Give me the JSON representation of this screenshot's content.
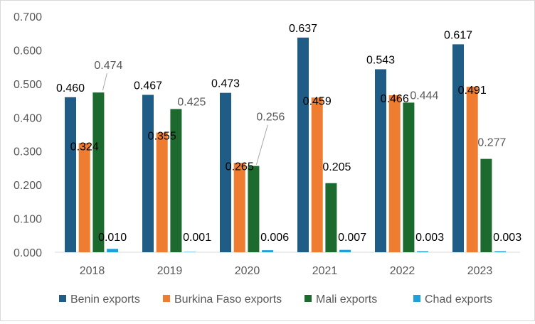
{
  "chart_data": {
    "type": "bar",
    "title": "",
    "xlabel": "",
    "ylabel": "",
    "categories": [
      "2018",
      "2019",
      "2020",
      "2021",
      "2022",
      "2023"
    ],
    "ylim": [
      0,
      0.7
    ],
    "yticks": [
      "0.000",
      "0.100",
      "0.200",
      "0.300",
      "0.400",
      "0.500",
      "0.600",
      "0.700"
    ],
    "grid": false,
    "legend_position": "bottom",
    "series": [
      {
        "name": "Benin exports",
        "color": "#1f5c86",
        "values": [
          0.46,
          0.467,
          0.473,
          0.637,
          0.543,
          0.617
        ],
        "labels": [
          "0.460",
          "0.467",
          "0.473",
          "0.637",
          "0.543",
          "0.617"
        ]
      },
      {
        "name": "Burkina Faso exports",
        "color": "#ee7d31",
        "values": [
          0.324,
          0.355,
          0.265,
          0.459,
          0.466,
          0.491
        ],
        "labels": [
          "0.324",
          "0.355",
          "0.265",
          "0.459",
          "0.466",
          "0.491"
        ]
      },
      {
        "name": "Mali exports",
        "color": "#1d6a2f",
        "values": [
          0.474,
          0.425,
          0.256,
          0.205,
          0.444,
          0.277
        ],
        "labels": [
          "0.474",
          "0.425",
          "0.256",
          "0.205",
          "0.444",
          "0.277"
        ]
      },
      {
        "name": "Chad exports",
        "color": "#1ea0d8",
        "values": [
          0.01,
          0.001,
          0.006,
          0.007,
          0.003,
          0.003
        ],
        "labels": [
          "0.010",
          "0.001",
          "0.006",
          "0.007",
          "0.003",
          "0.003"
        ]
      }
    ]
  }
}
